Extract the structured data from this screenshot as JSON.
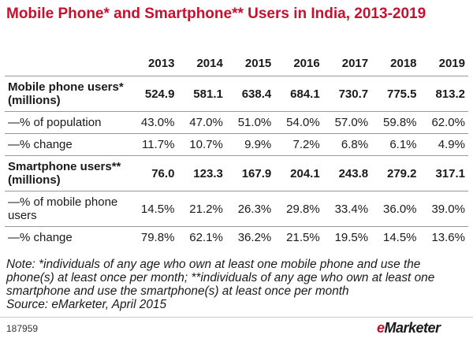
{
  "chart_data": {
    "type": "table",
    "title": "Mobile Phone* and Smartphone** Users in India, 2013-2019",
    "columns": [
      "2013",
      "2014",
      "2015",
      "2016",
      "2017",
      "2018",
      "2019"
    ],
    "rows": [
      {
        "label": "Mobile phone users* (millions)",
        "bold": true,
        "values": [
          "524.9",
          "581.1",
          "638.4",
          "684.1",
          "730.7",
          "775.5",
          "813.2"
        ]
      },
      {
        "label": "—% of population",
        "bold": false,
        "values": [
          "43.0%",
          "47.0%",
          "51.0%",
          "54.0%",
          "57.0%",
          "59.8%",
          "62.0%"
        ]
      },
      {
        "label": "—% change",
        "bold": false,
        "values": [
          "11.7%",
          "10.7%",
          "9.9%",
          "7.2%",
          "6.8%",
          "6.1%",
          "4.9%"
        ]
      },
      {
        "label": "Smartphone users** (millions)",
        "bold": true,
        "values": [
          "76.0",
          "123.3",
          "167.9",
          "204.1",
          "243.8",
          "279.2",
          "317.1"
        ]
      },
      {
        "label": "—% of mobile phone users",
        "bold": false,
        "values": [
          "14.5%",
          "21.2%",
          "26.3%",
          "29.8%",
          "33.4%",
          "36.0%",
          "39.0%"
        ]
      },
      {
        "label": "—% change",
        "bold": false,
        "values": [
          "79.8%",
          "62.1%",
          "36.2%",
          "21.5%",
          "19.5%",
          "14.5%",
          "13.6%"
        ]
      }
    ],
    "note": "Note: *individuals of any age who own at least one mobile phone and use the phone(s) at least once per month; **individuals of any age who own at least one smartphone and use the smartphone(s) at least once per month",
    "source": "Source: eMarketer, April 2015",
    "chart_id": "187959"
  },
  "brand": {
    "prefix": "e",
    "name": "Marketer"
  },
  "colors": {
    "title": "#c8102e",
    "rule": "#999999"
  }
}
